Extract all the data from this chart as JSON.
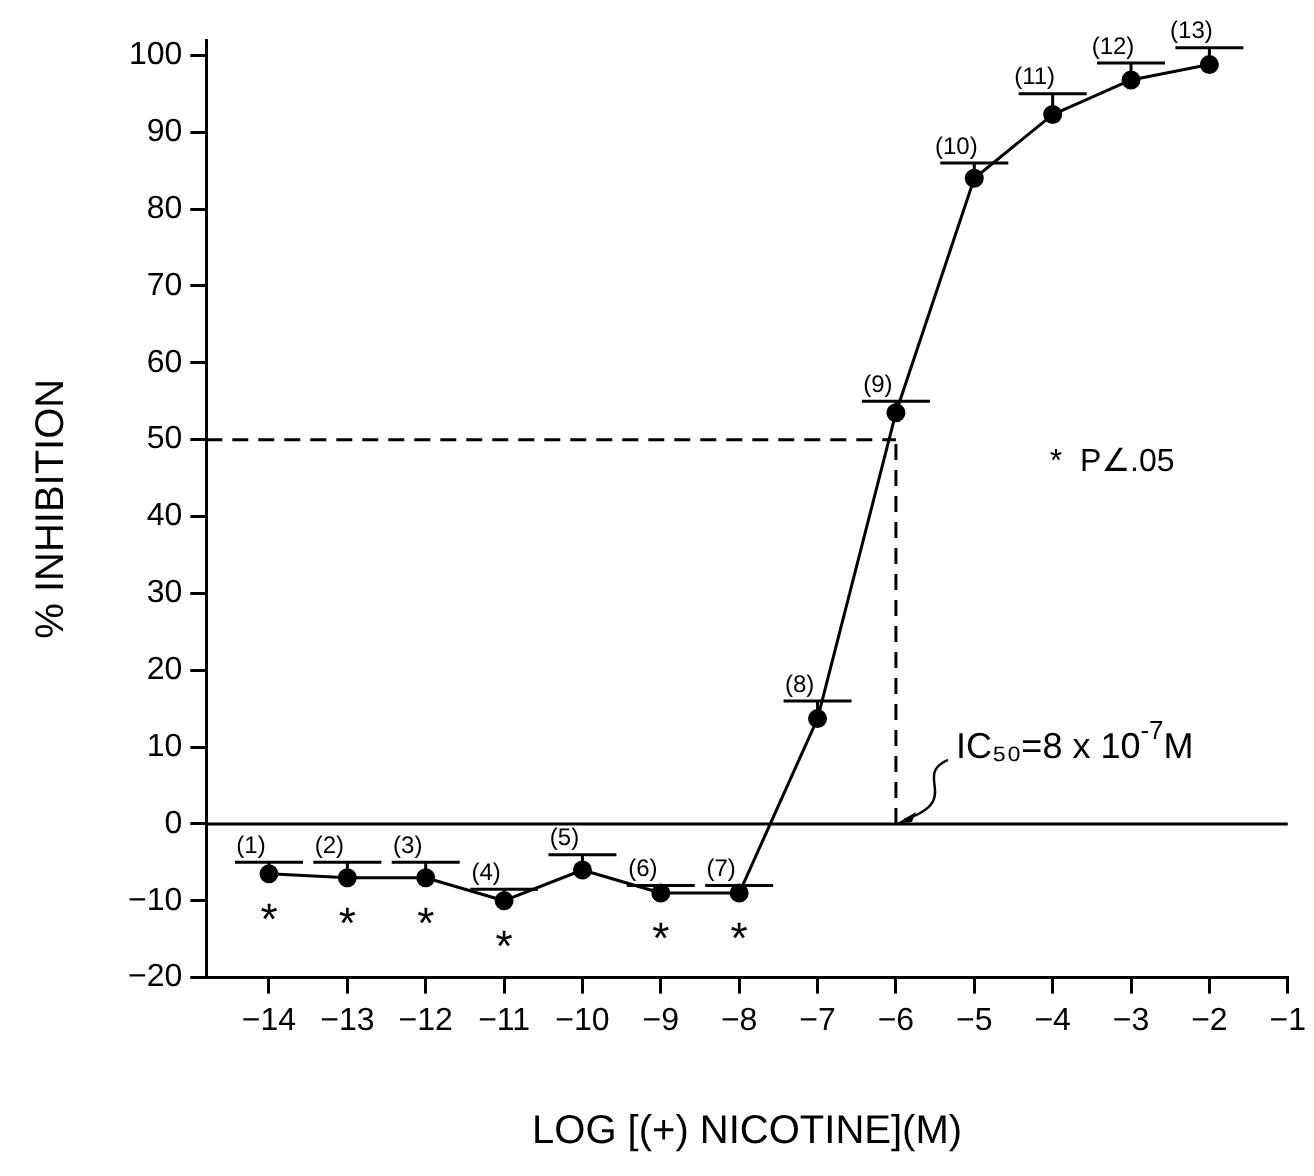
{
  "chart_data": {
    "type": "line",
    "xlabel": "LOG [(+) NICOTINE](M)",
    "ylabel": "% INHIBITION",
    "x": [
      -14,
      -13,
      -12,
      -11,
      -10,
      -9,
      -8,
      -7,
      -6,
      -5,
      -4,
      -3,
      -2
    ],
    "series": [
      {
        "color": "#000000",
        "values": [
          -6.5,
          -7,
          -7,
          -10,
          -6,
          -9,
          -9,
          13.7,
          53.5,
          84,
          92.3,
          96.8,
          98.8
        ],
        "errors": [
          [
            -6.5,
            -5
          ],
          [
            -7,
            -5
          ],
          [
            -7,
            -5
          ],
          [
            -10,
            -8.5
          ],
          [
            -6,
            -4
          ],
          [
            -9,
            -8
          ],
          [
            -9,
            -8
          ],
          [
            13.7,
            16
          ],
          [
            53.5,
            55
          ],
          [
            84,
            86
          ],
          [
            92.3,
            95
          ],
          [
            96.8,
            99
          ],
          [
            98.8,
            101
          ]
        ]
      }
    ],
    "xlim": [
      -14.8,
      -1
    ],
    "xticks": [
      -14,
      -13,
      -12,
      -11,
      -10,
      -9,
      -8,
      -7,
      -6,
      -5,
      -4,
      -3,
      -2,
      -1
    ],
    "ylim": [
      -20,
      102
    ],
    "yticks": [
      -20,
      -10,
      0,
      10,
      20,
      30,
      40,
      50,
      60,
      70,
      80,
      90,
      100
    ],
    "grid": false,
    "legend": false,
    "marker": "circle",
    "line_style": "solid",
    "ref_lines": [
      {
        "axis": "y",
        "value": 0,
        "line_style": "solid",
        "color": "#000000"
      },
      {
        "axis": "y",
        "value": 50,
        "line_style": "dashed",
        "color": "#000000"
      },
      {
        "axis": "x",
        "value": -6,
        "line_style": "dashed",
        "color": "#000000"
      }
    ],
    "annotations": [
      {
        "text": "(1)",
        "x": -14,
        "y": -5
      },
      {
        "text": "(2)",
        "x": -13,
        "y": -5
      },
      {
        "text": "(3)",
        "x": -12,
        "y": -5
      },
      {
        "text": "(4)",
        "x": -11,
        "y": -8.5
      },
      {
        "text": "(5)",
        "x": -10,
        "y": -4
      },
      {
        "text": "(6)",
        "x": -9,
        "y": -8
      },
      {
        "text": "(7)",
        "x": -8,
        "y": -8
      },
      {
        "text": "(8)",
        "x": -7,
        "y": 16
      },
      {
        "text": "(9)",
        "x": -6,
        "y": 55
      },
      {
        "text": "(10)",
        "x": -5,
        "y": 86
      },
      {
        "text": "(11)",
        "x": -4,
        "y": 95
      },
      {
        "text": "(12)",
        "x": -3,
        "y": 99
      },
      {
        "text": "(13)",
        "x": -2,
        "y": 101
      },
      {
        "text": "*",
        "x": -14,
        "y": -6.5
      },
      {
        "text": "*",
        "x": -13,
        "y": -7
      },
      {
        "text": "*",
        "x": -12,
        "y": -7
      },
      {
        "text": "*",
        "x": -11,
        "y": -10
      },
      {
        "text": "*",
        "x": -9,
        "y": -9
      },
      {
        "text": "*",
        "x": -8,
        "y": -9
      },
      "*  P∠.05",
      {
        "text": "IC₅₀=8 x 10$^{-7}$M",
        "x": -6,
        "y": 0
      }
    ]
  }
}
